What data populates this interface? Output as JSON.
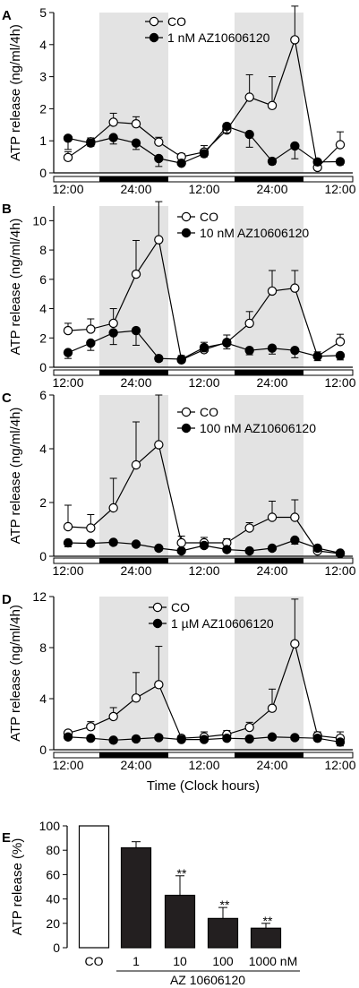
{
  "chart_data": [
    {
      "panel": "A",
      "type": "line",
      "ylabel": "ATP release (ng/ml/4h)",
      "ylim": [
        0,
        5
      ],
      "yticks": [
        0,
        1,
        2,
        3,
        4,
        5
      ],
      "x_tick_labels": [
        "12:00",
        "24:00",
        "12:00",
        "24:00",
        "12:00"
      ],
      "series": [
        {
          "name": "CO",
          "marker": "open-circle",
          "values": [
            0.48,
            0.97,
            1.58,
            1.53,
            0.96,
            0.5,
            0.65,
            1.34,
            2.36,
            2.1,
            4.15,
            0.17,
            0.88
          ],
          "errors": [
            0.18,
            0.12,
            0.28,
            0.22,
            0.15,
            0.1,
            0.2,
            0.2,
            0.7,
            0.9,
            1.05,
            0.1,
            0.4
          ]
        },
        {
          "name": "1 nM AZ10606120",
          "marker": "filled-circle",
          "values": [
            1.08,
            0.93,
            1.1,
            0.93,
            0.45,
            0.3,
            0.6,
            1.45,
            1.2,
            0.36,
            0.84,
            0.34,
            0.35
          ],
          "errors": [
            0.35,
            0.1,
            0.2,
            0.2,
            0.25,
            0.05,
            0.1,
            0.2,
            0.4,
            0.1,
            0.4,
            0.1,
            0.1
          ]
        }
      ]
    },
    {
      "panel": "B",
      "type": "line",
      "ylabel": "ATP release (ng/ml/4h)",
      "ylim": [
        0,
        11
      ],
      "yticks": [
        0,
        2,
        4,
        6,
        8,
        10
      ],
      "x_tick_labels": [
        "12:00",
        "24:00",
        "12:00",
        "24:00",
        "12:00"
      ],
      "series": [
        {
          "name": "CO",
          "marker": "open-circle",
          "values": [
            2.5,
            2.6,
            3.0,
            6.35,
            8.7,
            0.5,
            1.2,
            1.7,
            3.0,
            5.2,
            5.4,
            0.75,
            1.75
          ],
          "errors": [
            0.5,
            0.7,
            1.0,
            2.3,
            2.6,
            0.3,
            0.5,
            0.5,
            0.8,
            1.4,
            1.2,
            0.3,
            0.5
          ]
        },
        {
          "name": "10 nM AZ10606120",
          "marker": "filled-circle",
          "values": [
            1.0,
            1.65,
            2.35,
            2.5,
            0.6,
            0.55,
            1.35,
            1.65,
            1.15,
            1.3,
            1.15,
            0.75,
            0.8
          ],
          "errors": [
            0.4,
            0.5,
            0.8,
            1.0,
            0.2,
            0.1,
            0.3,
            0.4,
            0.3,
            0.4,
            0.5,
            0.3,
            0.3
          ]
        }
      ]
    },
    {
      "panel": "C",
      "type": "line",
      "ylabel": "ATP release (ng/ml/4h)",
      "ylim": [
        0,
        6
      ],
      "yticks": [
        0,
        2,
        4,
        6
      ],
      "x_tick_labels": [
        "12:00",
        "24:00",
        "12:00",
        "24:00",
        "12:00"
      ],
      "series": [
        {
          "name": "CO",
          "marker": "open-circle",
          "values": [
            1.1,
            1.05,
            1.8,
            3.4,
            4.15,
            0.5,
            0.5,
            0.5,
            1.05,
            1.45,
            1.45,
            0.2,
            0.1
          ],
          "errors": [
            0.8,
            0.5,
            1.1,
            1.6,
            1.85,
            0.25,
            0.2,
            0.15,
            0.2,
            0.6,
            0.65,
            0.1,
            0.1
          ]
        },
        {
          "name": "100 nM AZ10606120",
          "marker": "filled-circle",
          "values": [
            0.5,
            0.48,
            0.52,
            0.45,
            0.3,
            0.2,
            0.4,
            0.25,
            0.2,
            0.3,
            0.6,
            0.3,
            0.12
          ],
          "errors": [
            0.15,
            0.1,
            0.1,
            0.1,
            0.1,
            0.05,
            0.1,
            0.1,
            0.1,
            0.1,
            0.15,
            0.1,
            0.05
          ]
        }
      ]
    },
    {
      "panel": "D",
      "type": "line",
      "ylabel": "ATP release (ng/ml/4h)",
      "ylim": [
        0,
        12
      ],
      "yticks": [
        0,
        4,
        8,
        12
      ],
      "xlabel": "Time (Clock hours)",
      "x_tick_labels": [
        "12:00",
        "24:00",
        "12:00",
        "24:00",
        "12:00"
      ],
      "series": [
        {
          "name": "CO",
          "marker": "open-circle",
          "values": [
            1.3,
            1.8,
            2.6,
            4.05,
            5.1,
            0.9,
            1.0,
            1.2,
            1.75,
            3.25,
            8.3,
            1.1,
            0.9
          ],
          "errors": [
            0.2,
            0.4,
            0.7,
            2.0,
            3.0,
            0.2,
            0.4,
            0.3,
            0.4,
            1.5,
            3.5,
            0.3,
            0.5
          ]
        },
        {
          "name": "1 µM AZ10606120",
          "marker": "filled-circle",
          "values": [
            1.0,
            0.9,
            0.75,
            0.85,
            0.95,
            0.8,
            0.8,
            0.9,
            0.85,
            1.0,
            0.95,
            0.9,
            0.6
          ],
          "errors": [
            0.15,
            0.1,
            0.1,
            0.1,
            0.1,
            0.1,
            0.1,
            0.1,
            0.1,
            0.1,
            0.1,
            0.2,
            0.3
          ]
        }
      ]
    },
    {
      "panel": "E",
      "type": "bar",
      "ylabel": "ATP release    (%)",
      "ylim": [
        0,
        100
      ],
      "yticks": [
        0,
        20,
        40,
        60,
        80,
        100
      ],
      "categories": [
        "CO",
        "1",
        "10",
        "100",
        "1000 nM"
      ],
      "values": [
        100,
        82,
        43,
        24,
        16
      ],
      "errors": [
        0,
        5,
        16,
        9,
        4
      ],
      "significance": [
        "",
        "",
        "**",
        "**",
        "**"
      ],
      "group_label": "AZ 10606120"
    }
  ],
  "colors": {
    "shade": "#e3e3e3",
    "ink": "#000000",
    "open_fill": "#ffffff",
    "bar_fill": "#231f20"
  }
}
